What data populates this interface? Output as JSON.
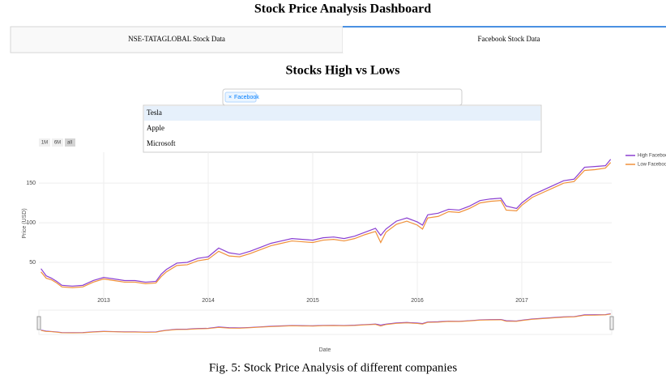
{
  "header": {
    "title": "Stock Price Analysis Dashboard"
  },
  "tabs": [
    "NSE-TATAGLOBAL Stock Data",
    "Facebook Stock Data"
  ],
  "dropdown": {
    "selected": [
      "Facebook"
    ],
    "remove": "×",
    "options": [
      "Tesla",
      "Apple",
      "Microsoft"
    ]
  },
  "range_buttons": [
    "1M",
    "6M",
    "all"
  ],
  "caption": "Fig. 5: Stock Price Analysis of different companies",
  "chart_data": {
    "type": "line",
    "title": "Stocks High vs Lows",
    "x_label": "Date",
    "y_label": "Price (USD)",
    "x": [
      2012.4,
      2012.45,
      2012.5,
      2012.55,
      2012.6,
      2012.7,
      2012.8,
      2012.9,
      2013.0,
      2013.1,
      2013.2,
      2013.3,
      2013.4,
      2013.5,
      2013.55,
      2013.6,
      2013.7,
      2013.8,
      2013.9,
      2014.0,
      2014.1,
      2014.2,
      2014.3,
      2014.4,
      2014.5,
      2014.6,
      2014.7,
      2014.8,
      2014.9,
      2015.0,
      2015.1,
      2015.2,
      2015.3,
      2015.4,
      2015.5,
      2015.6,
      2015.65,
      2015.7,
      2015.8,
      2015.9,
      2016.0,
      2016.05,
      2016.1,
      2016.2,
      2016.3,
      2016.4,
      2016.5,
      2016.6,
      2016.7,
      2016.8,
      2016.85,
      2016.95,
      2017.0,
      2017.1,
      2017.2,
      2017.3,
      2017.4,
      2017.5,
      2017.6,
      2017.7,
      2017.8,
      2017.85
    ],
    "series": [
      {
        "name": "High Facebook",
        "color": "#8a3fd1",
        "values": [
          42,
          33,
          30,
          26,
          21,
          20,
          21,
          27,
          31,
          29,
          27,
          27,
          25,
          26,
          35,
          41,
          49,
          50,
          55,
          57,
          68,
          62,
          60,
          64,
          69,
          74,
          77,
          80,
          79,
          78,
          81,
          82,
          80,
          83,
          88,
          93,
          84,
          92,
          102,
          106,
          101,
          97,
          110,
          112,
          117,
          116,
          121,
          128,
          130,
          131,
          121,
          118,
          125,
          135,
          141,
          147,
          153,
          155,
          170,
          171,
          172,
          180
        ]
      },
      {
        "name": "Low Facebook",
        "color": "#f0913a",
        "values": [
          38,
          30,
          28,
          24,
          19,
          18,
          19,
          25,
          29,
          27,
          25,
          25,
          23,
          24,
          32,
          38,
          46,
          47,
          52,
          54,
          64,
          58,
          57,
          61,
          66,
          71,
          74,
          77,
          76,
          75,
          78,
          79,
          77,
          80,
          85,
          89,
          75,
          88,
          98,
          102,
          97,
          92,
          106,
          108,
          114,
          113,
          118,
          125,
          127,
          128,
          116,
          115,
          122,
          132,
          138,
          144,
          150,
          152,
          166,
          167,
          169,
          176
        ]
      }
    ],
    "xlim": [
      2012.38,
      2017.86
    ],
    "xticks": [
      2013,
      2014,
      2015,
      2016,
      2017
    ],
    "ylim": [
      5,
      189
    ],
    "yticks": [
      50,
      100,
      150
    ],
    "grid": true,
    "legend": "top-right"
  }
}
